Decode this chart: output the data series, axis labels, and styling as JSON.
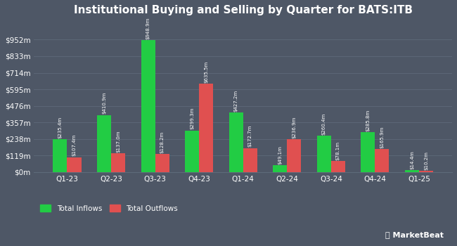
{
  "title": "Institutional Buying and Selling by Quarter for BATS:ITB",
  "quarters": [
    "Q1-23",
    "Q2-23",
    "Q3-23",
    "Q4-23",
    "Q1-24",
    "Q2-24",
    "Q3-24",
    "Q4-24",
    "Q1-25"
  ],
  "inflows": [
    235.4,
    410.9,
    948.9,
    299.3,
    427.2,
    49.1,
    260.4,
    285.8,
    14.4
  ],
  "outflows": [
    107.4,
    137.0,
    128.2,
    635.5,
    172.7,
    236.9,
    78.1,
    165.9,
    10.2
  ],
  "inflow_labels": [
    "$235.4m",
    "$410.9m",
    "$948.9m",
    "$299.3m",
    "$427.2m",
    "$49.1m",
    "$260.4m",
    "$285.8m",
    "$14.4m"
  ],
  "outflow_labels": [
    "$107.4m",
    "$137.0m",
    "$128.2m",
    "$635.5m",
    "$172.7m",
    "$236.9m",
    "$78.1m",
    "$165.9m",
    "$10.2m"
  ],
  "inflow_color": "#22cc44",
  "outflow_color": "#e05050",
  "background_color": "#4e5766",
  "text_color": "#ffffff",
  "grid_color": "#5e6a7a",
  "ytick_labels": [
    "$0m",
    "$119m",
    "$238m",
    "$357m",
    "$476m",
    "$595m",
    "$714m",
    "$833m",
    "$952m"
  ],
  "ytick_values": [
    0,
    119,
    238,
    357,
    476,
    595,
    714,
    833,
    952
  ],
  "ymax": 1071,
  "legend_inflow": "Total Inflows",
  "legend_outflow": "Total Outflows",
  "bar_width": 0.32,
  "label_fontsize": 5.0,
  "tick_fontsize": 7.5,
  "title_fontsize": 11.0
}
